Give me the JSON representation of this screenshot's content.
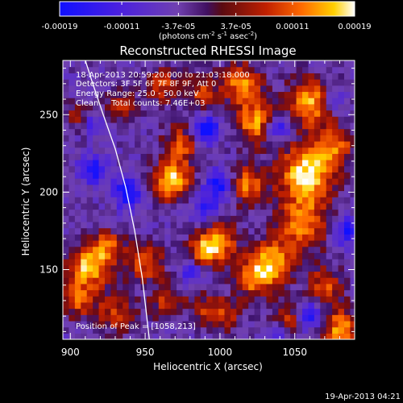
{
  "chart_data": {
    "type": "heatmap",
    "title": "Reconstructed RHESSI Image",
    "xlabel": "Heliocentric X (arcsec)",
    "ylabel": "Heliocentric Y (arcsec)",
    "x_range": [
      895,
      1090
    ],
    "y_range": [
      105,
      285
    ],
    "x_ticks": [
      "900",
      "950",
      "1000",
      "1050"
    ],
    "x_tick_values": [
      900,
      950,
      1000,
      1050
    ],
    "y_ticks": [
      "150",
      "200",
      "250"
    ],
    "y_tick_values": [
      150,
      200,
      250
    ],
    "colorbar": {
      "ticks": [
        "-0.00019",
        "-0.00011",
        "-3.7e-05",
        "3.7e-05",
        "0.00011",
        "0.00019"
      ],
      "tick_values": [
        -0.00019,
        -0.00011,
        -3.7e-05,
        3.7e-05,
        0.00011,
        0.00019
      ],
      "range": [
        -0.00019,
        0.00019
      ],
      "unit_line1": "(photons cm",
      "unit_sup1": "-2",
      "unit_mid": " s",
      "unit_sup2": "-1",
      "unit_mid2": " asec",
      "unit_sup3": "-2",
      "unit_end": ")"
    },
    "annotations": {
      "time": "18-Apr-2013 20:59:20.000 to 21:03:18.000",
      "detectors": "Detectors: 3F 5F 6F 7F 8F 9F, Att 0",
      "energy": "Energy Range: 25.0 - 50.0 keV",
      "clean": "Clean     Total counts: 7.46E+03",
      "peak": "Position of Peak = [1058,213]"
    },
    "peak": [
      1058,
      213
    ],
    "blobs": [
      {
        "x": 1058,
        "y": 213,
        "v": 1.0,
        "r": 13
      },
      {
        "x": 1062,
        "y": 258,
        "v": 0.85,
        "r": 11
      },
      {
        "x": 1055,
        "y": 180,
        "v": 0.7,
        "r": 12
      },
      {
        "x": 1078,
        "y": 230,
        "v": 0.6,
        "r": 8
      },
      {
        "x": 1025,
        "y": 245,
        "v": 0.8,
        "r": 10
      },
      {
        "x": 1015,
        "y": 270,
        "v": 0.75,
        "r": 9
      },
      {
        "x": 1018,
        "y": 205,
        "v": 0.7,
        "r": 9
      },
      {
        "x": 1035,
        "y": 155,
        "v": 0.75,
        "r": 10
      },
      {
        "x": 1022,
        "y": 145,
        "v": 0.65,
        "r": 9
      },
      {
        "x": 1070,
        "y": 140,
        "v": 0.55,
        "r": 9
      },
      {
        "x": 1080,
        "y": 112,
        "v": 0.75,
        "r": 9
      },
      {
        "x": 1045,
        "y": 118,
        "v": 0.55,
        "r": 8
      },
      {
        "x": 968,
        "y": 208,
        "v": 0.95,
        "r": 9
      },
      {
        "x": 975,
        "y": 232,
        "v": 0.55,
        "r": 9
      },
      {
        "x": 962,
        "y": 270,
        "v": 0.55,
        "r": 8
      },
      {
        "x": 988,
        "y": 265,
        "v": 0.5,
        "r": 8
      },
      {
        "x": 998,
        "y": 168,
        "v": 0.85,
        "r": 9
      },
      {
        "x": 987,
        "y": 160,
        "v": 0.55,
        "r": 7
      },
      {
        "x": 950,
        "y": 155,
        "v": 0.6,
        "r": 9
      },
      {
        "x": 965,
        "y": 130,
        "v": 0.5,
        "r": 8
      },
      {
        "x": 912,
        "y": 152,
        "v": 0.85,
        "r": 10
      },
      {
        "x": 905,
        "y": 130,
        "v": 0.55,
        "r": 8
      },
      {
        "x": 925,
        "y": 165,
        "v": 0.55,
        "r": 8
      },
      {
        "x": 930,
        "y": 122,
        "v": 0.5,
        "r": 9
      },
      {
        "x": 935,
        "y": 255,
        "v": 0.45,
        "r": 8
      },
      {
        "x": 905,
        "y": 250,
        "v": 0.35,
        "r": 7
      },
      {
        "x": 992,
        "y": 125,
        "v": 0.45,
        "r": 8
      },
      {
        "x": 1005,
        "y": 120,
        "v": 0.4,
        "r": 7
      }
    ],
    "negatives": [
      {
        "x": 990,
        "y": 240,
        "v": -0.9,
        "r": 6
      },
      {
        "x": 1038,
        "y": 242,
        "v": -0.8,
        "r": 6
      },
      {
        "x": 1000,
        "y": 205,
        "v": -0.7,
        "r": 7
      },
      {
        "x": 938,
        "y": 200,
        "v": -0.6,
        "r": 7
      },
      {
        "x": 990,
        "y": 190,
        "v": -0.5,
        "r": 6
      },
      {
        "x": 1085,
        "y": 175,
        "v": -0.6,
        "r": 6
      },
      {
        "x": 1060,
        "y": 120,
        "v": -0.7,
        "r": 6
      },
      {
        "x": 1040,
        "y": 110,
        "v": -0.6,
        "r": 5
      },
      {
        "x": 915,
        "y": 215,
        "v": -0.6,
        "r": 6
      },
      {
        "x": 1075,
        "y": 260,
        "v": -0.5,
        "r": 6
      },
      {
        "x": 982,
        "y": 150,
        "v": -0.5,
        "r": 6
      },
      {
        "x": 915,
        "y": 245,
        "v": -0.4,
        "r": 5
      }
    ],
    "limb_curve": [
      [
        909,
        288
      ],
      [
        915,
        270
      ],
      [
        922,
        250
      ],
      [
        930,
        228
      ],
      [
        937,
        203
      ],
      [
        943,
        175
      ],
      [
        948,
        145
      ],
      [
        951,
        120
      ],
      [
        953,
        103
      ]
    ],
    "grid": false
  },
  "footer": {
    "timestamp": "19-Apr-2013 04:21"
  }
}
